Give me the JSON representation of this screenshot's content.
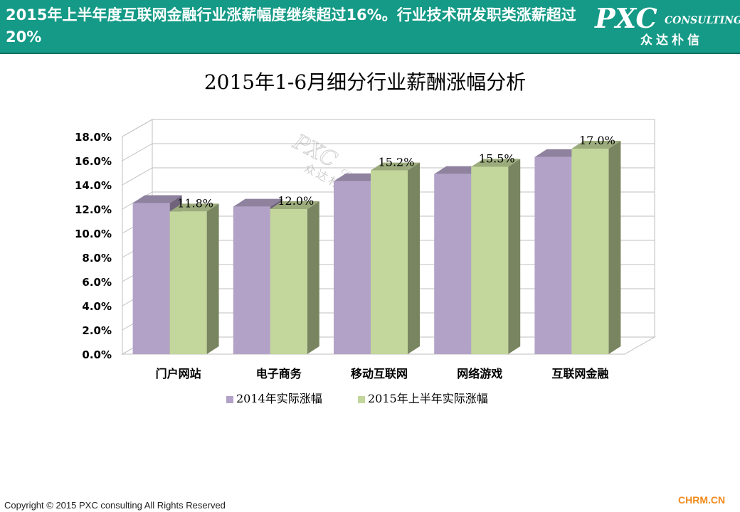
{
  "header": {
    "title": "2015年上半年度互联网金融行业涨薪幅度继续超过16%。行业技术研发职类涨薪超过20%",
    "logo_main": "PXC",
    "logo_sub": "CONSULTING",
    "logo_cn": "众达朴信"
  },
  "watermark": {
    "main": "PXC",
    "sub": "CONSULTING",
    "cn": "众达朴信"
  },
  "chart_data": {
    "type": "bar",
    "style": "3d-clustered-column",
    "title": "2015年1-6月细分行业薪酬涨幅分析",
    "xlabel": "",
    "ylabel": "",
    "categories": [
      "门户网站",
      "电子商务",
      "移动互联网",
      "网络游戏",
      "互联网金融"
    ],
    "series": [
      {
        "name": "2014年实际涨幅",
        "values": [
          12.5,
          12.2,
          14.3,
          14.9,
          16.3
        ],
        "color": "#b3a2c7"
      },
      {
        "name": "2015年上半年实际涨幅",
        "values": [
          11.8,
          12.0,
          15.2,
          15.5,
          17.0
        ],
        "color": "#c3d69b"
      }
    ],
    "data_labels": {
      "series_index": 1,
      "labels": [
        "11.8%",
        "12.0%",
        "15.2%",
        "15.5%",
        "17.0%"
      ]
    },
    "y_ticks": [
      "0.0%",
      "2.0%",
      "4.0%",
      "6.0%",
      "8.0%",
      "10.0%",
      "12.0%",
      "14.0%",
      "16.0%",
      "18.0%"
    ],
    "ylim": [
      0,
      18
    ],
    "grid": true,
    "legend_position": "bottom"
  },
  "footer": {
    "copyright": "Copyright © 2015  PXC consulting All Rights Reserved",
    "site": "CHRM.CN"
  }
}
